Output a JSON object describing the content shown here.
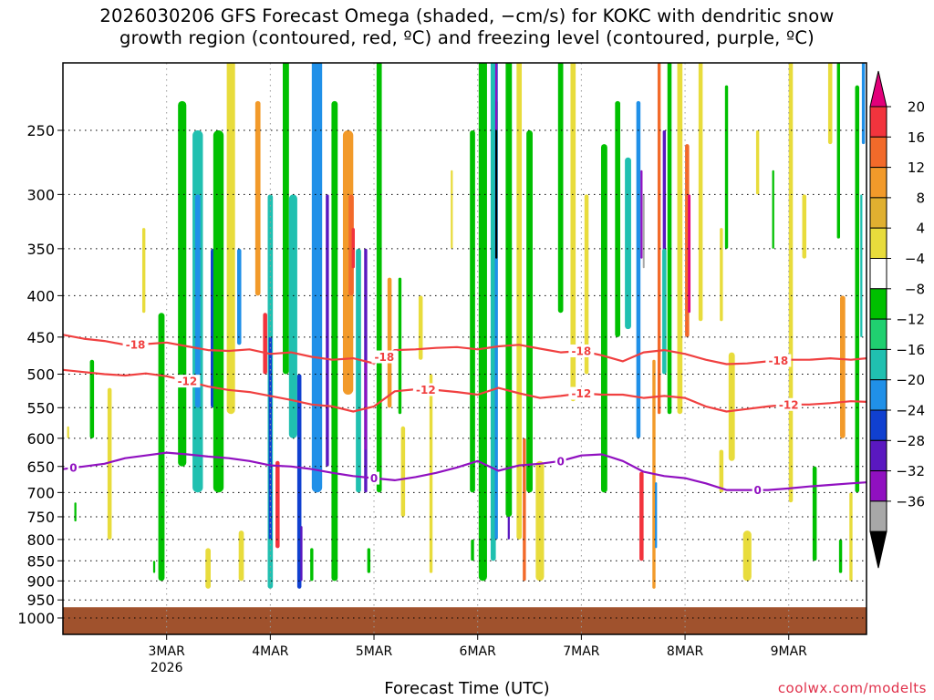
{
  "chart_data": {
    "type": "heatmap",
    "title_line1": "2026030206 GFS Forecast Omega (shaded, −cm/s) for KOKC with dendritic snow",
    "title_line2": "growth region (contoured, red, ºC) and freezing level (contoured, purple, ºC)",
    "xlabel": "Forecast Time (UTC)",
    "credit": "coolwx.com/modelts",
    "y_ticks": [
      "250",
      "300",
      "350",
      "400",
      "450",
      "500",
      "550",
      "600",
      "650",
      "700",
      "750",
      "800",
      "850",
      "900",
      "950",
      "1000"
    ],
    "y_tick_values": [
      250,
      300,
      350,
      400,
      450,
      500,
      550,
      600,
      650,
      700,
      750,
      800,
      850,
      900,
      950,
      1000
    ],
    "x_ticks": [
      "3MAR",
      "4MAR",
      "5MAR",
      "6MAR",
      "7MAR",
      "8MAR",
      "9MAR"
    ],
    "x_tick_values": [
      1,
      2,
      3,
      4,
      5,
      6,
      7
    ],
    "x_year": "2026",
    "xlim": [
      0.0,
      7.75
    ],
    "ylim_hpa": [
      200,
      1000
    ],
    "ground_pressure_hpa": 970,
    "colorbar": {
      "labels": [
        "20",
        "16",
        "12",
        "8",
        "4",
        "−4",
        "−8",
        "−12",
        "−16",
        "−20",
        "−24",
        "−28",
        "−32",
        "−36"
      ],
      "colors": [
        "#e2007a",
        "#f2343d",
        "#f26a2a",
        "#f29a2a",
        "#e0b030",
        "#e8dc3c",
        "#ffffff",
        "#00c000",
        "#20d070",
        "#20c0b0",
        "#2090e8",
        "#1040d0",
        "#5a18c0",
        "#9010c0",
        "#a8a8a8",
        "#000000"
      ]
    },
    "contours": {
      "dendritic_minus18": {
        "name": "-18",
        "color": "#f04040",
        "label_text": "-18",
        "x": [
          0,
          0.2,
          0.4,
          0.6,
          0.8,
          1.0,
          1.2,
          1.4,
          1.6,
          1.8,
          2.0,
          2.2,
          2.4,
          2.6,
          2.8,
          3.0,
          3.2,
          3.4,
          3.6,
          3.8,
          4.0,
          4.2,
          4.4,
          4.6,
          4.8,
          5.0,
          5.2,
          5.4,
          5.6,
          5.8,
          6.0,
          6.2,
          6.4,
          6.6,
          6.8,
          7.0,
          7.2,
          7.4,
          7.6,
          7.75
        ],
        "p": [
          447,
          452,
          455,
          460,
          459,
          457,
          462,
          467,
          468,
          466,
          472,
          470,
          476,
          480,
          478,
          485,
          467,
          466,
          464,
          463,
          466,
          462,
          460,
          465,
          470,
          468,
          474,
          482,
          470,
          467,
          472,
          480,
          486,
          485,
          482,
          480,
          480,
          478,
          480,
          478
        ]
      },
      "dendritic_minus12": {
        "name": "-12",
        "color": "#f04040",
        "label_text": "-12",
        "x": [
          0,
          0.2,
          0.4,
          0.6,
          0.8,
          1.0,
          1.2,
          1.4,
          1.6,
          1.8,
          2.0,
          2.2,
          2.4,
          2.6,
          2.8,
          3.0,
          3.2,
          3.4,
          3.6,
          3.8,
          4.0,
          4.2,
          4.4,
          4.6,
          4.8,
          5.0,
          5.2,
          5.4,
          5.6,
          5.8,
          6.0,
          6.2,
          6.4,
          6.6,
          6.8,
          7.0,
          7.2,
          7.4,
          7.6,
          7.75
        ],
        "p": [
          494,
          497,
          500,
          502,
          499,
          503,
          510,
          518,
          523,
          526,
          532,
          538,
          545,
          548,
          556,
          548,
          525,
          522,
          523,
          526,
          530,
          520,
          528,
          535,
          532,
          528,
          530,
          530,
          535,
          532,
          535,
          548,
          556,
          552,
          548,
          545,
          545,
          543,
          540,
          541
        ]
      },
      "freezing_0": {
        "name": "0",
        "color": "#9010c0",
        "label_text": "0",
        "x": [
          0,
          0.2,
          0.4,
          0.6,
          0.8,
          1.0,
          1.2,
          1.4,
          1.6,
          1.8,
          2.0,
          2.2,
          2.4,
          2.6,
          2.8,
          3.0,
          3.2,
          3.4,
          3.6,
          3.8,
          4.0,
          4.2,
          4.4,
          4.6,
          4.8,
          5.0,
          5.2,
          5.4,
          5.6,
          5.8,
          6.0,
          6.2,
          6.4,
          6.6,
          6.8,
          7.0,
          7.2,
          7.4,
          7.6,
          7.75
        ],
        "p": [
          655,
          650,
          645,
          635,
          630,
          625,
          628,
          632,
          635,
          640,
          648,
          650,
          655,
          662,
          668,
          672,
          676,
          670,
          662,
          652,
          640,
          658,
          648,
          645,
          640,
          630,
          628,
          640,
          660,
          668,
          672,
          682,
          695,
          695,
          695,
          692,
          688,
          685,
          682,
          680
        ]
      }
    },
    "labels_shown": [
      {
        "contour": "dendritic_minus18",
        "x": 0.7
      },
      {
        "contour": "dendritic_minus18",
        "x": 3.1
      },
      {
        "contour": "dendritic_minus18",
        "x": 5.0
      },
      {
        "contour": "dendritic_minus18",
        "x": 6.9
      },
      {
        "contour": "dendritic_minus12",
        "x": 1.2
      },
      {
        "contour": "dendritic_minus12",
        "x": 3.5
      },
      {
        "contour": "dendritic_minus12",
        "x": 5.0
      },
      {
        "contour": "dendritic_minus12",
        "x": 7.0
      },
      {
        "contour": "freezing_0",
        "x": 0.1
      },
      {
        "contour": "freezing_0",
        "x": 3.0
      },
      {
        "contour": "freezing_0",
        "x": 4.8
      },
      {
        "contour": "freezing_0",
        "x": 6.7
      }
    ],
    "omega_features": [
      {
        "t": 0.28,
        "ptop": 480,
        "pbot": 600,
        "w": 0.04,
        "v": -8
      },
      {
        "t": 0.45,
        "ptop": 520,
        "pbot": 800,
        "w": 0.04,
        "v": 4
      },
      {
        "t": 0.78,
        "ptop": 330,
        "pbot": 420,
        "w": 0.03,
        "v": 4
      },
      {
        "t": 0.95,
        "ptop": 420,
        "pbot": 900,
        "w": 0.06,
        "v": -8
      },
      {
        "t": 1.15,
        "ptop": 230,
        "pbot": 650,
        "w": 0.08,
        "v": -8
      },
      {
        "t": 1.3,
        "ptop": 250,
        "pbot": 700,
        "w": 0.1,
        "v": -12
      },
      {
        "t": 1.3,
        "ptop": 300,
        "pbot": 550,
        "w": 0.05,
        "v": -16
      },
      {
        "t": 1.45,
        "ptop": 350,
        "pbot": 550,
        "w": 0.05,
        "v": -20
      },
      {
        "t": 1.5,
        "ptop": 250,
        "pbot": 700,
        "w": 0.1,
        "v": -8
      },
      {
        "t": 1.62,
        "ptop": 200,
        "pbot": 560,
        "w": 0.08,
        "v": 4
      },
      {
        "t": 1.7,
        "ptop": 350,
        "pbot": 460,
        "w": 0.04,
        "v": -16
      },
      {
        "t": 1.72,
        "ptop": 780,
        "pbot": 900,
        "w": 0.05,
        "v": 4
      },
      {
        "t": 1.88,
        "ptop": 230,
        "pbot": 400,
        "w": 0.05,
        "v": 8
      },
      {
        "t": 1.95,
        "ptop": 420,
        "pbot": 500,
        "w": 0.04,
        "v": 16
      },
      {
        "t": 2.0,
        "ptop": 300,
        "pbot": 920,
        "w": 0.05,
        "v": -12
      },
      {
        "t": 2.0,
        "ptop": 450,
        "pbot": 800,
        "w": 0.03,
        "v": -20
      },
      {
        "t": 2.07,
        "ptop": 640,
        "pbot": 820,
        "w": 0.04,
        "v": 16
      },
      {
        "t": 2.15,
        "ptop": 200,
        "pbot": 500,
        "w": 0.06,
        "v": -8
      },
      {
        "t": 2.22,
        "ptop": 300,
        "pbot": 600,
        "w": 0.08,
        "v": -12
      },
      {
        "t": 2.28,
        "ptop": 500,
        "pbot": 920,
        "w": 0.04,
        "v": -20
      },
      {
        "t": 2.3,
        "ptop": 770,
        "pbot": 900,
        "w": 0.02,
        "v": -24
      },
      {
        "t": 2.45,
        "ptop": 200,
        "pbot": 700,
        "w": 0.1,
        "v": -16
      },
      {
        "t": 2.55,
        "ptop": 300,
        "pbot": 650,
        "w": 0.03,
        "v": -24
      },
      {
        "t": 2.62,
        "ptop": 230,
        "pbot": 900,
        "w": 0.06,
        "v": -8
      },
      {
        "t": 2.85,
        "ptop": 350,
        "pbot": 700,
        "w": 0.05,
        "v": -12
      },
      {
        "t": 2.92,
        "ptop": 350,
        "pbot": 700,
        "w": 0.03,
        "v": -24
      },
      {
        "t": 2.92,
        "ptop": 480,
        "pbot": 620,
        "w": 0.02,
        "v": -28
      },
      {
        "t": 2.75,
        "ptop": 250,
        "pbot": 530,
        "w": 0.1,
        "v": 8
      },
      {
        "t": 2.78,
        "ptop": 300,
        "pbot": 400,
        "w": 0.05,
        "v": 12
      },
      {
        "t": 2.8,
        "ptop": 330,
        "pbot": 370,
        "w": 0.03,
        "v": 16
      },
      {
        "t": 3.05,
        "ptop": 200,
        "pbot": 700,
        "w": 0.05,
        "v": -8
      },
      {
        "t": 3.15,
        "ptop": 380,
        "pbot": 550,
        "w": 0.04,
        "v": 8
      },
      {
        "t": 3.25,
        "ptop": 380,
        "pbot": 560,
        "w": 0.03,
        "v": -8
      },
      {
        "t": 3.28,
        "ptop": 580,
        "pbot": 750,
        "w": 0.04,
        "v": 4
      },
      {
        "t": 3.45,
        "ptop": 400,
        "pbot": 480,
        "w": 0.04,
        "v": 4
      },
      {
        "t": 3.55,
        "ptop": 500,
        "pbot": 880,
        "w": 0.03,
        "v": 4
      },
      {
        "t": 3.75,
        "ptop": 280,
        "pbot": 350,
        "w": 0.02,
        "v": 4
      },
      {
        "t": 3.95,
        "ptop": 250,
        "pbot": 700,
        "w": 0.05,
        "v": -8
      },
      {
        "t": 4.05,
        "ptop": 200,
        "pbot": 900,
        "w": 0.08,
        "v": -8
      },
      {
        "t": 4.15,
        "ptop": 200,
        "pbot": 850,
        "w": 0.05,
        "v": -12
      },
      {
        "t": 4.18,
        "ptop": 200,
        "pbot": 800,
        "w": 0.03,
        "v": -16
      },
      {
        "t": 4.18,
        "ptop": 230,
        "pbot": 360,
        "w": 0.02,
        "v": -36
      },
      {
        "t": 4.18,
        "ptop": 200,
        "pbot": 250,
        "w": 0.02,
        "v": -28
      },
      {
        "t": 4.3,
        "ptop": 350,
        "pbot": 800,
        "w": 0.02,
        "v": -24
      },
      {
        "t": 4.3,
        "ptop": 200,
        "pbot": 750,
        "w": 0.06,
        "v": -8
      },
      {
        "t": 4.4,
        "ptop": 200,
        "pbot": 800,
        "w": 0.05,
        "v": 4
      },
      {
        "t": 4.45,
        "ptop": 600,
        "pbot": 900,
        "w": 0.03,
        "v": 12
      },
      {
        "t": 4.5,
        "ptop": 250,
        "pbot": 700,
        "w": 0.06,
        "v": -8
      },
      {
        "t": 4.6,
        "ptop": 640,
        "pbot": 900,
        "w": 0.08,
        "v": 4
      },
      {
        "t": 4.8,
        "ptop": 200,
        "pbot": 420,
        "w": 0.05,
        "v": -8
      },
      {
        "t": 4.92,
        "ptop": 200,
        "pbot": 540,
        "w": 0.05,
        "v": 4
      },
      {
        "t": 5.05,
        "ptop": 300,
        "pbot": 500,
        "w": 0.04,
        "v": 4
      },
      {
        "t": 5.22,
        "ptop": 260,
        "pbot": 700,
        "w": 0.06,
        "v": -8
      },
      {
        "t": 5.35,
        "ptop": 230,
        "pbot": 450,
        "w": 0.05,
        "v": -8
      },
      {
        "t": 5.45,
        "ptop": 270,
        "pbot": 440,
        "w": 0.06,
        "v": -12
      },
      {
        "t": 5.55,
        "ptop": 230,
        "pbot": 600,
        "w": 0.04,
        "v": -16
      },
      {
        "t": 5.58,
        "ptop": 280,
        "pbot": 360,
        "w": 0.02,
        "v": -28
      },
      {
        "t": 5.6,
        "ptop": 300,
        "pbot": 370,
        "w": 0.015,
        "v": -32
      },
      {
        "t": 5.58,
        "ptop": 660,
        "pbot": 850,
        "w": 0.04,
        "v": 16
      },
      {
        "t": 5.7,
        "ptop": 480,
        "pbot": 920,
        "w": 0.03,
        "v": 8
      },
      {
        "t": 5.72,
        "ptop": 680,
        "pbot": 820,
        "w": 0.02,
        "v": -16
      },
      {
        "t": 5.75,
        "ptop": 200,
        "pbot": 560,
        "w": 0.03,
        "v": 12
      },
      {
        "t": 5.8,
        "ptop": 250,
        "pbot": 400,
        "w": 0.03,
        "v": -24
      },
      {
        "t": 5.8,
        "ptop": 350,
        "pbot": 500,
        "w": 0.04,
        "v": -12
      },
      {
        "t": 5.85,
        "ptop": 200,
        "pbot": 560,
        "w": 0.04,
        "v": -8
      },
      {
        "t": 5.95,
        "ptop": 200,
        "pbot": 560,
        "w": 0.05,
        "v": 4
      },
      {
        "t": 6.02,
        "ptop": 260,
        "pbot": 450,
        "w": 0.04,
        "v": 12
      },
      {
        "t": 6.04,
        "ptop": 300,
        "pbot": 420,
        "w": 0.025,
        "v": 20
      },
      {
        "t": 6.15,
        "ptop": 200,
        "pbot": 430,
        "w": 0.04,
        "v": 4
      },
      {
        "t": 6.35,
        "ptop": 330,
        "pbot": 430,
        "w": 0.03,
        "v": 4
      },
      {
        "t": 6.4,
        "ptop": 220,
        "pbot": 350,
        "w": 0.03,
        "v": -8
      },
      {
        "t": 6.45,
        "ptop": 470,
        "pbot": 640,
        "w": 0.06,
        "v": 4
      },
      {
        "t": 6.6,
        "ptop": 780,
        "pbot": 900,
        "w": 0.08,
        "v": 4
      },
      {
        "t": 6.7,
        "ptop": 250,
        "pbot": 300,
        "w": 0.03,
        "v": 4
      },
      {
        "t": 6.85,
        "ptop": 280,
        "pbot": 350,
        "w": 0.02,
        "v": -8
      },
      {
        "t": 7.02,
        "ptop": 200,
        "pbot": 720,
        "w": 0.04,
        "v": 4
      },
      {
        "t": 7.15,
        "ptop": 300,
        "pbot": 360,
        "w": 0.04,
        "v": 4
      },
      {
        "t": 7.25,
        "ptop": 650,
        "pbot": 850,
        "w": 0.04,
        "v": -8
      },
      {
        "t": 7.4,
        "ptop": 200,
        "pbot": 260,
        "w": 0.04,
        "v": 4
      },
      {
        "t": 7.48,
        "ptop": 200,
        "pbot": 340,
        "w": 0.03,
        "v": -8
      },
      {
        "t": 7.52,
        "ptop": 400,
        "pbot": 600,
        "w": 0.05,
        "v": 8
      },
      {
        "t": 7.66,
        "ptop": 220,
        "pbot": 700,
        "w": 0.04,
        "v": -8
      },
      {
        "t": 7.7,
        "ptop": 300,
        "pbot": 450,
        "w": 0.02,
        "v": -12
      },
      {
        "t": 7.72,
        "ptop": 200,
        "pbot": 260,
        "w": 0.03,
        "v": -16
      },
      {
        "t": 0.05,
        "ptop": 580,
        "pbot": 600,
        "w": 0.02,
        "v": 4
      },
      {
        "t": 0.12,
        "ptop": 720,
        "pbot": 760,
        "w": 0.02,
        "v": -8
      },
      {
        "t": 0.88,
        "ptop": 850,
        "pbot": 880,
        "w": 0.02,
        "v": -8
      },
      {
        "t": 1.4,
        "ptop": 820,
        "pbot": 920,
        "w": 0.05,
        "v": 4
      },
      {
        "t": 2.4,
        "ptop": 820,
        "pbot": 900,
        "w": 0.03,
        "v": -8
      },
      {
        "t": 2.95,
        "ptop": 820,
        "pbot": 880,
        "w": 0.03,
        "v": -8
      },
      {
        "t": 3.95,
        "ptop": 800,
        "pbot": 850,
        "w": 0.03,
        "v": -8
      },
      {
        "t": 6.35,
        "ptop": 620,
        "pbot": 700,
        "w": 0.04,
        "v": 4
      },
      {
        "t": 7.5,
        "ptop": 800,
        "pbot": 880,
        "w": 0.03,
        "v": -8
      },
      {
        "t": 7.6,
        "ptop": 700,
        "pbot": 900,
        "w": 0.03,
        "v": 4
      }
    ]
  }
}
